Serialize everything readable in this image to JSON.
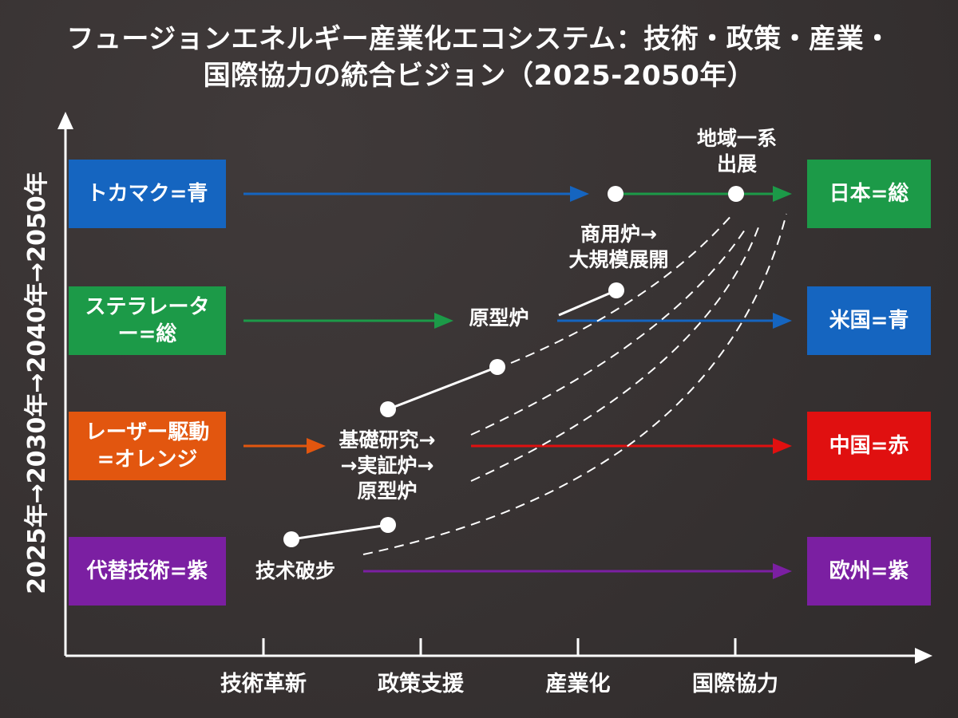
{
  "title": {
    "line1": "フュージョンエネルギー産業化エコシステム：技術・政策・産業・",
    "line2": "国際協力の統合ビジョン（2025-2050年）"
  },
  "y_axis_label": "2025年→2030年→2040年→2050年",
  "x_axis_ticks": [
    "技術革新",
    "政策支援",
    "産業化",
    "国際協力"
  ],
  "left_boxes": [
    {
      "label": "トカマク=青",
      "color": "#1565c0"
    },
    {
      "label": "ステラレーター=総",
      "color": "#1c9a48"
    },
    {
      "label": "レーザー駆動=オレンジ",
      "color": "#e2560f"
    },
    {
      "label": "代替技術=紫",
      "color": "#7b1fa2"
    }
  ],
  "right_boxes": [
    {
      "label": "日本=総",
      "color": "#1c9a48"
    },
    {
      "label": "米国=青",
      "color": "#1565c0"
    },
    {
      "label": "中国=赤",
      "color": "#e01010"
    },
    {
      "label": "欧州=紫",
      "color": "#7b1fa2"
    }
  ],
  "annotations": {
    "regional": "地域一系\n出展",
    "commercial": "商用炉→\n大規模展開",
    "prototype": "原型炉",
    "research": "基礎研究→\n→実証炉→\n原型炉",
    "breakthrough": "技术破步"
  },
  "colors": {
    "background": "#3a3535",
    "blue": "#1565c0",
    "green": "#1c9a48",
    "orange": "#e2560f",
    "red": "#e01010",
    "purple": "#7b1fa2"
  }
}
